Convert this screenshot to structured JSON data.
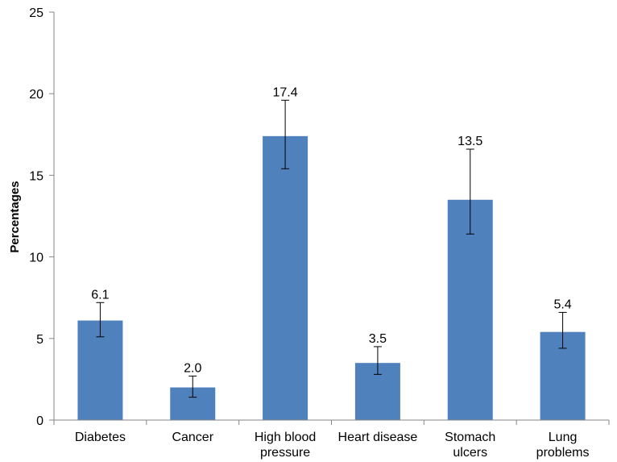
{
  "chart_data": {
    "type": "bar",
    "title": "",
    "xlabel": "",
    "ylabel": "Percentages",
    "ylim": [
      0,
      25
    ],
    "yticks": [
      0,
      5,
      10,
      15,
      20,
      25
    ],
    "grid": false,
    "legend": "none",
    "bar_color": "#4F81BD",
    "categories": [
      [
        "Diabetes"
      ],
      [
        "Cancer"
      ],
      [
        "High blood",
        "pressure"
      ],
      [
        "Heart disease"
      ],
      [
        "Stomach",
        "ulcers"
      ],
      [
        "Lung",
        "problems"
      ]
    ],
    "values": [
      6.1,
      2.0,
      17.4,
      3.5,
      13.5,
      5.4
    ],
    "data_labels": [
      "6.1",
      "2.0",
      "17.4",
      "3.5",
      "13.5",
      "5.4"
    ],
    "error_bars": [
      [
        5.1,
        7.2
      ],
      [
        1.4,
        2.7
      ],
      [
        15.4,
        19.6
      ],
      [
        2.8,
        4.5
      ],
      [
        11.4,
        16.6
      ],
      [
        4.4,
        6.6
      ]
    ]
  }
}
